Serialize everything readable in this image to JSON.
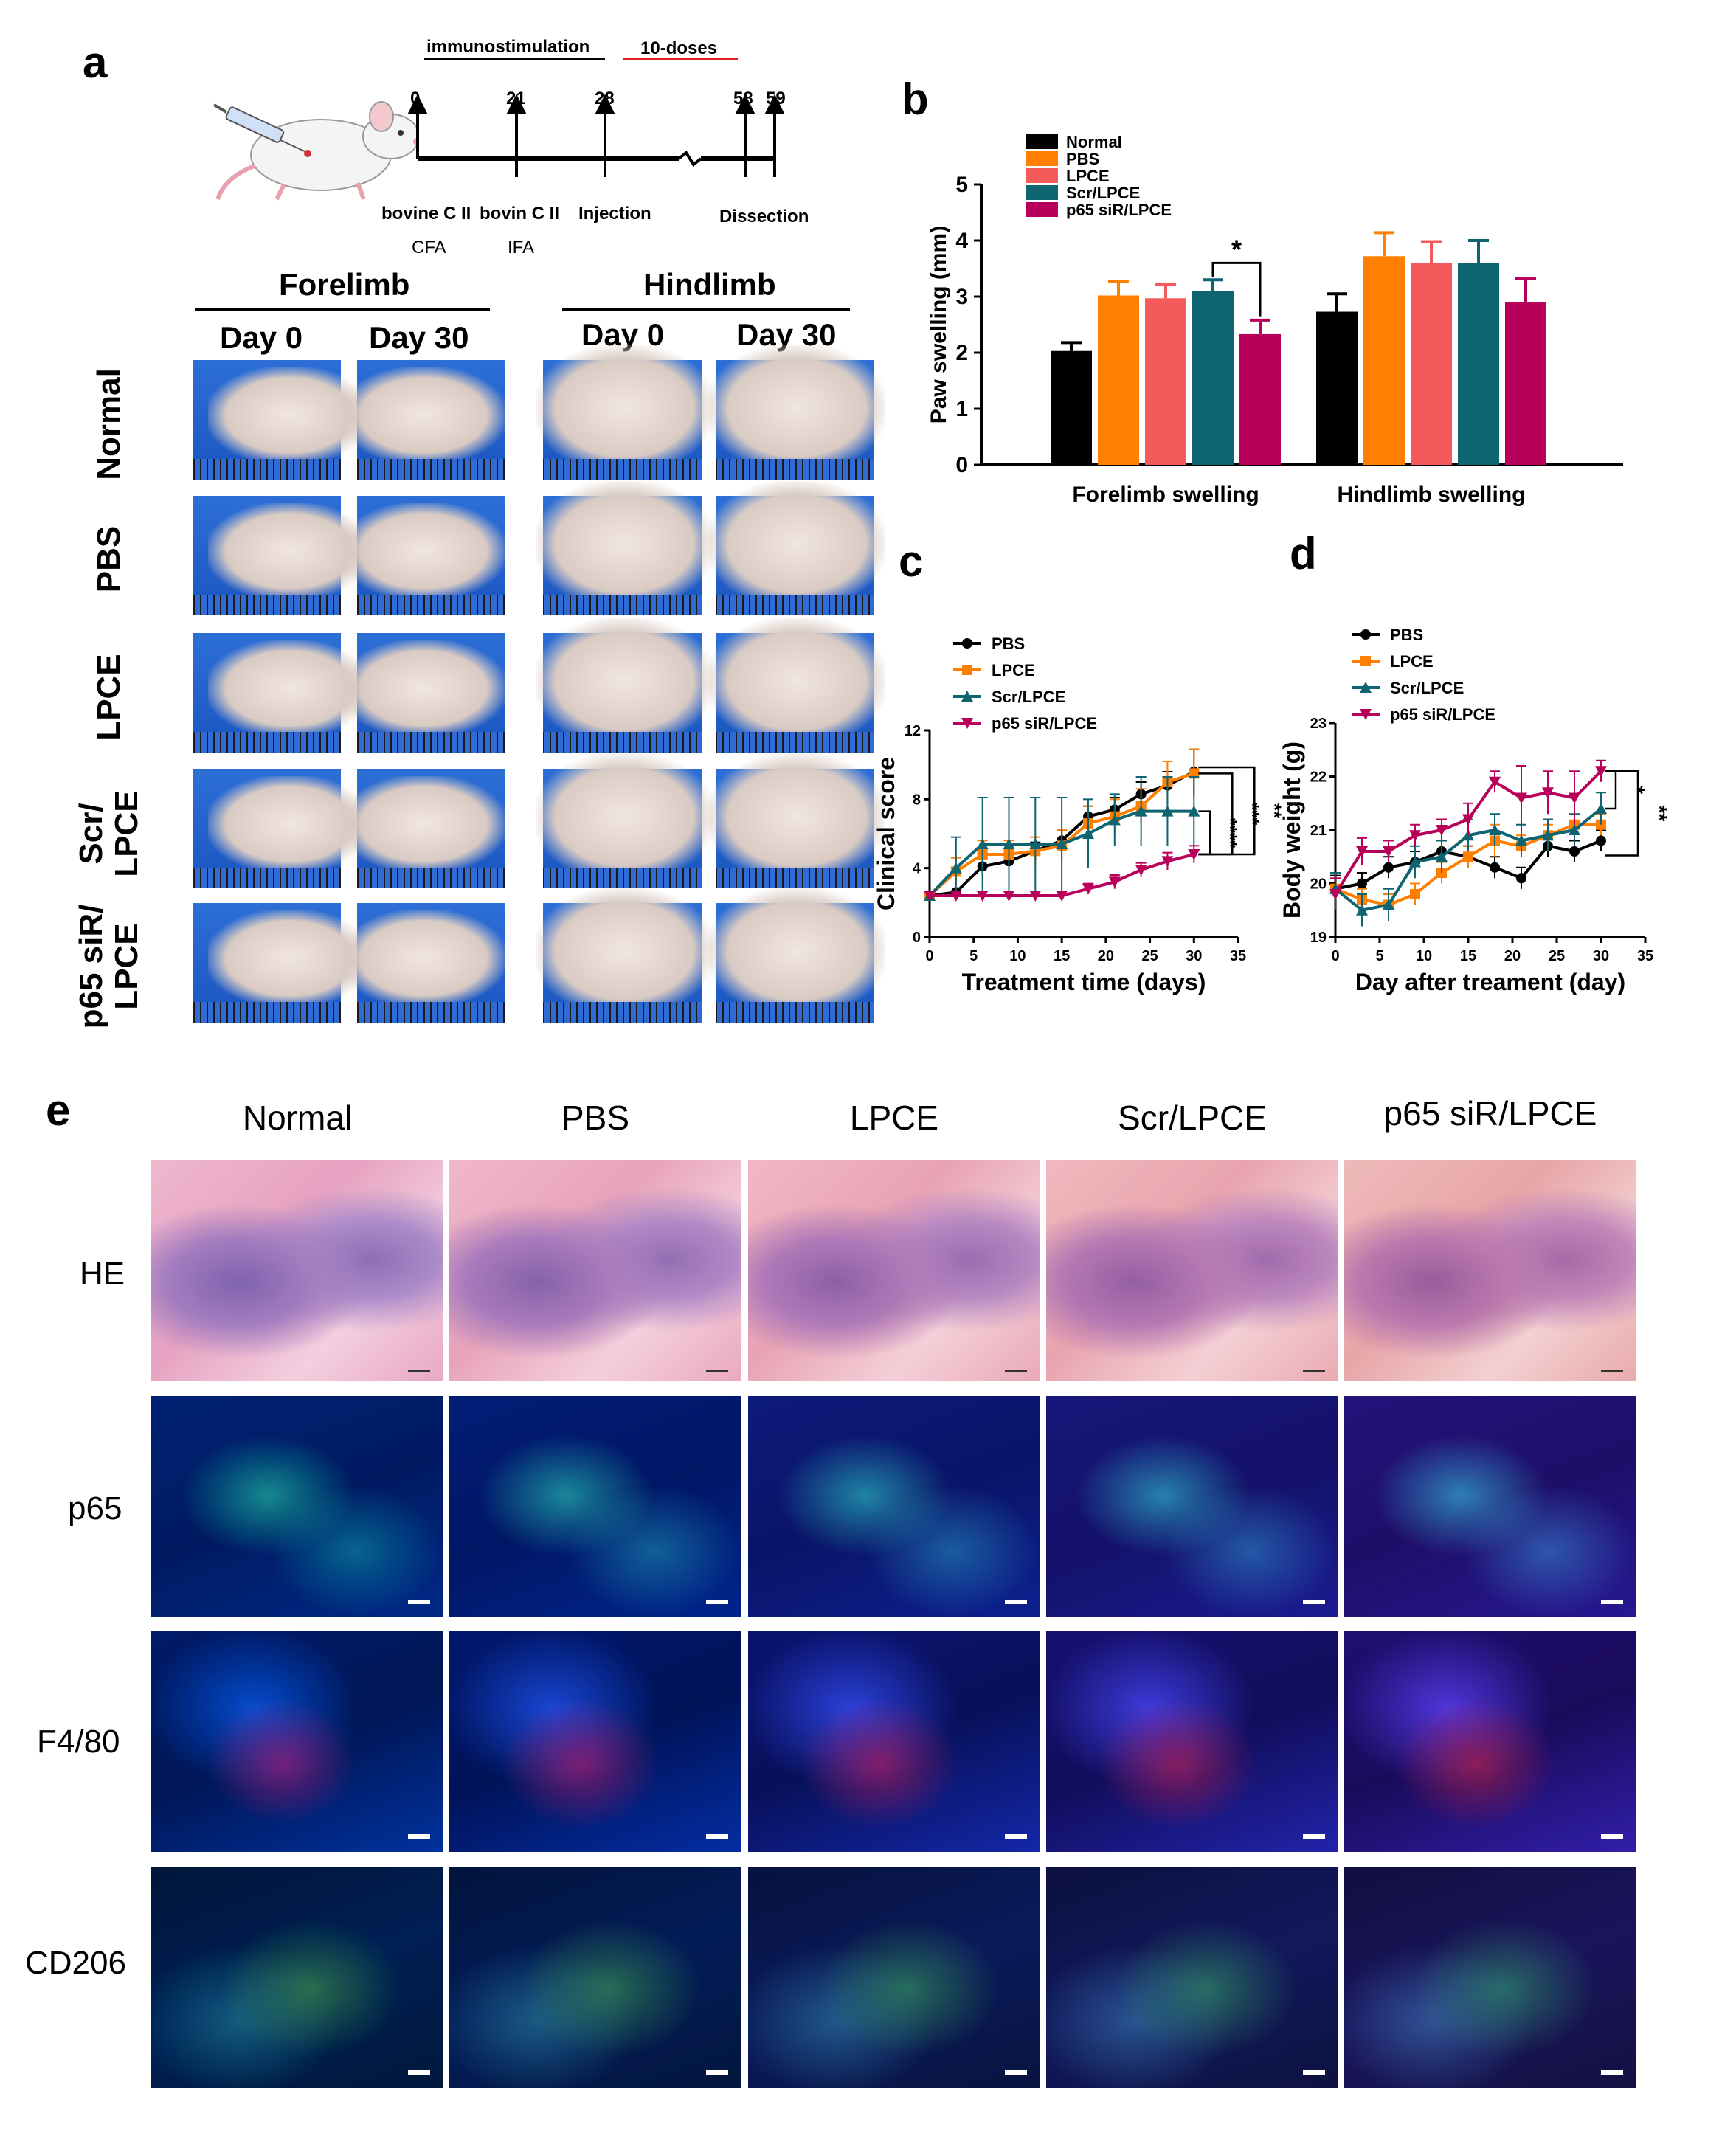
{
  "panels": {
    "a": "a",
    "b": "b",
    "c": "c",
    "d": "d",
    "e": "e"
  },
  "timeline": {
    "phase1": "immunostimulation",
    "phase2": "10-doses",
    "ticks": [
      "0",
      "21",
      "28",
      "58",
      "59"
    ],
    "events": [
      "bovine C II",
      "bovin C II",
      "Injection",
      "Dissection"
    ],
    "adjuvants": [
      "CFA",
      "IFA"
    ]
  },
  "paw_grid": {
    "forelimb": "Forelimb",
    "hindlimb": "Hindlimb",
    "day0": "Day 0",
    "day30": "Day 30",
    "groups": [
      "Normal",
      "PBS",
      "LPCE",
      "Scr/\nLPCE",
      "p65 siR/\nLPCE"
    ]
  },
  "chart_data": [
    {
      "panel": "b",
      "type": "bar",
      "ylabel": "Paw swelling (mm)",
      "ylim": [
        0,
        5
      ],
      "yticks": [
        0,
        1,
        2,
        3,
        4,
        5
      ],
      "categories": [
        "Forelimb swelling",
        "Hindlimb swelling"
      ],
      "series": [
        {
          "name": "Normal",
          "color": "#000000",
          "values": [
            2.03,
            2.73
          ],
          "errors": [
            0.15,
            0.32
          ]
        },
        {
          "name": "PBS",
          "color": "#ff7f00",
          "values": [
            3.02,
            3.72
          ],
          "errors": [
            0.25,
            0.42
          ]
        },
        {
          "name": "LPCE",
          "color": "#f55a5a",
          "values": [
            2.97,
            3.6
          ],
          "errors": [
            0.25,
            0.38
          ]
        },
        {
          "name": "Scr/LPCE",
          "color": "#0e6470",
          "values": [
            3.1,
            3.6
          ],
          "errors": [
            0.2,
            0.4
          ]
        },
        {
          "name": "p65 siR/LPCE",
          "color": "#b8005a",
          "values": [
            2.33,
            2.9
          ],
          "errors": [
            0.25,
            0.42
          ]
        }
      ],
      "annotation": "*"
    },
    {
      "panel": "c",
      "type": "line",
      "xlabel": "Treatment time (days)",
      "ylabel": "Clinical score",
      "xlim": [
        0,
        35
      ],
      "ylim": [
        0,
        12
      ],
      "xticks": [
        0,
        5,
        10,
        15,
        20,
        25,
        30,
        35
      ],
      "yticks": [
        0,
        4,
        8,
        12
      ],
      "x": [
        0,
        3,
        6,
        9,
        12,
        15,
        18,
        21,
        24,
        27,
        30
      ],
      "series": [
        {
          "name": "PBS",
          "color": "#000000",
          "marker": "circle",
          "values": [
            2.4,
            2.6,
            4.1,
            4.4,
            5.0,
            5.6,
            7.0,
            7.4,
            8.3,
            8.8,
            9.6
          ],
          "errors": [
            0,
            0,
            0.5,
            0.5,
            0.5,
            0.6,
            0.6,
            0.7,
            0.7,
            0.8,
            1.3
          ]
        },
        {
          "name": "LPCE",
          "color": "#ff7f00",
          "marker": "square",
          "values": [
            2.4,
            3.8,
            4.8,
            4.8,
            5.0,
            5.3,
            6.6,
            7.0,
            7.6,
            9.0,
            9.5
          ],
          "errors": [
            0,
            0.8,
            0.8,
            0.8,
            0.8,
            0.9,
            1.0,
            1.0,
            1.0,
            1.2,
            1.4
          ]
        },
        {
          "name": "Scr/LPCE",
          "color": "#0e6470",
          "marker": "triangle",
          "values": [
            2.4,
            4.0,
            5.4,
            5.4,
            5.4,
            5.4,
            6.0,
            6.8,
            7.3,
            7.3,
            7.3
          ],
          "errors": [
            0,
            1.8,
            2.7,
            2.7,
            2.7,
            2.7,
            2.0,
            1.5,
            2.0,
            2.0,
            2.0
          ]
        },
        {
          "name": "p65 siR/LPCE",
          "color": "#b8005a",
          "marker": "triangle-down",
          "values": [
            2.4,
            2.4,
            2.4,
            2.4,
            2.4,
            2.4,
            2.8,
            3.2,
            3.9,
            4.4,
            4.8
          ],
          "errors": [
            0,
            0,
            0,
            0,
            0,
            0,
            0.3,
            0.4,
            0.4,
            0.5,
            0.5
          ]
        }
      ],
      "significance": [
        "****",
        "***",
        "**"
      ]
    },
    {
      "panel": "d",
      "type": "line",
      "xlabel": "Day after treament (day)",
      "ylabel": "Body weight (g)",
      "xlim": [
        0,
        35
      ],
      "ylim": [
        19,
        23
      ],
      "xticks": [
        0,
        5,
        10,
        15,
        20,
        25,
        30,
        35
      ],
      "yticks": [
        19,
        20,
        21,
        22,
        23
      ],
      "x": [
        0,
        3,
        6,
        9,
        12,
        15,
        18,
        21,
        24,
        27,
        30
      ],
      "series": [
        {
          "name": "PBS",
          "color": "#000000",
          "marker": "circle",
          "values": [
            19.9,
            20.0,
            20.3,
            20.4,
            20.6,
            20.5,
            20.3,
            20.1,
            20.7,
            20.6,
            20.8
          ],
          "errors": [
            0.25,
            0.2,
            0.2,
            0.2,
            0.2,
            0.2,
            0.2,
            0.2,
            0.2,
            0.2,
            0.2
          ]
        },
        {
          "name": "LPCE",
          "color": "#ff7f00",
          "marker": "square",
          "values": [
            19.9,
            19.7,
            19.6,
            19.8,
            20.2,
            20.5,
            20.8,
            20.7,
            20.9,
            21.1,
            21.1
          ],
          "errors": [
            0.3,
            0.2,
            0.2,
            0.2,
            0.2,
            0.2,
            0.3,
            0.2,
            0.2,
            0.2,
            0.2
          ]
        },
        {
          "name": "Scr/LPCE",
          "color": "#0e6470",
          "marker": "triangle",
          "values": [
            19.9,
            19.5,
            19.6,
            20.4,
            20.5,
            20.9,
            21.0,
            20.8,
            20.9,
            21.0,
            21.4
          ],
          "errors": [
            0.3,
            0.3,
            0.3,
            0.3,
            0.3,
            0.3,
            0.3,
            0.3,
            0.3,
            0.3,
            0.3
          ]
        },
        {
          "name": "p65 siR/LPCE",
          "color": "#b8005a",
          "marker": "triangle-down",
          "values": [
            19.8,
            20.6,
            20.6,
            20.9,
            21.0,
            21.2,
            21.9,
            21.6,
            21.7,
            21.6,
            22.1
          ],
          "errors": [
            0.3,
            0.25,
            0.2,
            0.2,
            0.2,
            0.3,
            0.2,
            0.6,
            0.4,
            0.5,
            0.2
          ]
        }
      ],
      "significance": [
        "*",
        "**"
      ]
    }
  ],
  "histology": {
    "columns": [
      "Normal",
      "PBS",
      "LPCE",
      "Scr/LPCE",
      "p65 siR/LPCE"
    ],
    "rows": [
      "HE",
      "p65",
      "F4/80",
      "CD206"
    ]
  }
}
